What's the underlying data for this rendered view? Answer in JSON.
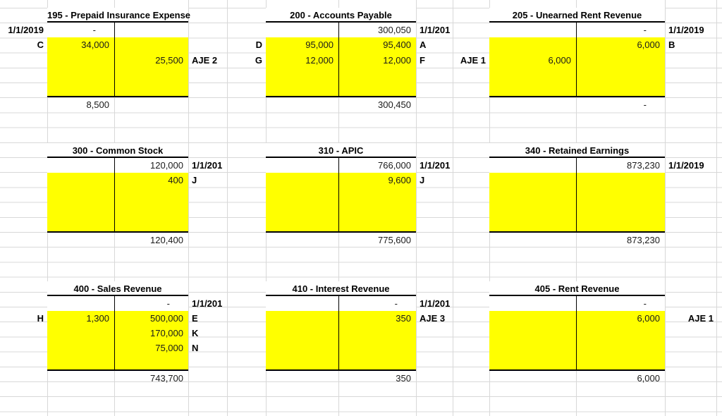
{
  "sheet": {
    "background_color": "#ffffff",
    "gridline_color": "#d8d8d8",
    "highlight_color": "#ffff00",
    "border_color": "#000000"
  },
  "accounts": [
    {
      "title": "195 - Prepaid Insurance Expense",
      "rows": [
        {
          "left": "1/1/2019",
          "debit": "-"
        },
        {
          "left": "C",
          "debit": "34,000"
        },
        {
          "credit": "25,500",
          "right": "AJE 2"
        },
        {},
        {}
      ],
      "totals": {
        "debit": "8,500"
      }
    },
    {
      "title": "200 - Accounts Payable",
      "rows": [
        {
          "credit": "300,050",
          "right": "1/1/201"
        },
        {
          "left": "D",
          "debit": "95,000",
          "credit": "95,400",
          "right": "A"
        },
        {
          "left": "G",
          "debit": "12,000",
          "credit": "12,000",
          "right": "F"
        },
        {},
        {}
      ],
      "totals": {
        "credit": "300,450"
      }
    },
    {
      "title": "205 - Unearned Rent Revenue",
      "rows": [
        {
          "credit": "-",
          "right": "1/1/2019"
        },
        {
          "credit": "6,000",
          "right": "B"
        },
        {
          "left": "AJE 1",
          "debit": "6,000"
        },
        {},
        {}
      ],
      "totals": {
        "credit": "-"
      }
    },
    {
      "title": "300 - Common Stock",
      "rows": [
        {
          "credit": "120,000",
          "right": "1/1/201"
        },
        {
          "credit": "400",
          "right": "J"
        },
        {},
        {},
        {}
      ],
      "totals": {
        "credit": "120,400"
      }
    },
    {
      "title": "310 - APIC",
      "rows": [
        {
          "credit": "766,000",
          "right": "1/1/201"
        },
        {
          "credit": "9,600",
          "right": "J"
        },
        {},
        {},
        {}
      ],
      "totals": {
        "credit": "775,600"
      }
    },
    {
      "title": "340 - Retained Earnings",
      "rows": [
        {
          "credit": "873,230",
          "right": "1/1/2019"
        },
        {},
        {},
        {},
        {}
      ],
      "totals": {
        "credit": "873,230"
      }
    },
    {
      "title": "400 - Sales Revenue",
      "rows": [
        {
          "credit": "-",
          "right": "1/1/201"
        },
        {
          "left": "H",
          "debit": "1,300",
          "credit": "500,000",
          "right": "E"
        },
        {
          "credit": "170,000",
          "right": "K"
        },
        {
          "credit": "75,000",
          "right": "N"
        },
        {}
      ],
      "totals": {
        "credit": "743,700"
      }
    },
    {
      "title": "410 - Interest Revenue",
      "rows": [
        {
          "credit": "-",
          "right": "1/1/201"
        },
        {
          "credit": "350",
          "right": "AJE 3"
        },
        {},
        {},
        {}
      ],
      "totals": {
        "credit": "350"
      }
    },
    {
      "title": "405 - Rent Revenue",
      "rows": [
        {
          "credit": "-"
        },
        {
          "credit": "6,000",
          "right": "AJE 1",
          "right_align": true
        },
        {},
        {},
        {}
      ],
      "totals": {
        "credit": "6,000"
      }
    }
  ]
}
